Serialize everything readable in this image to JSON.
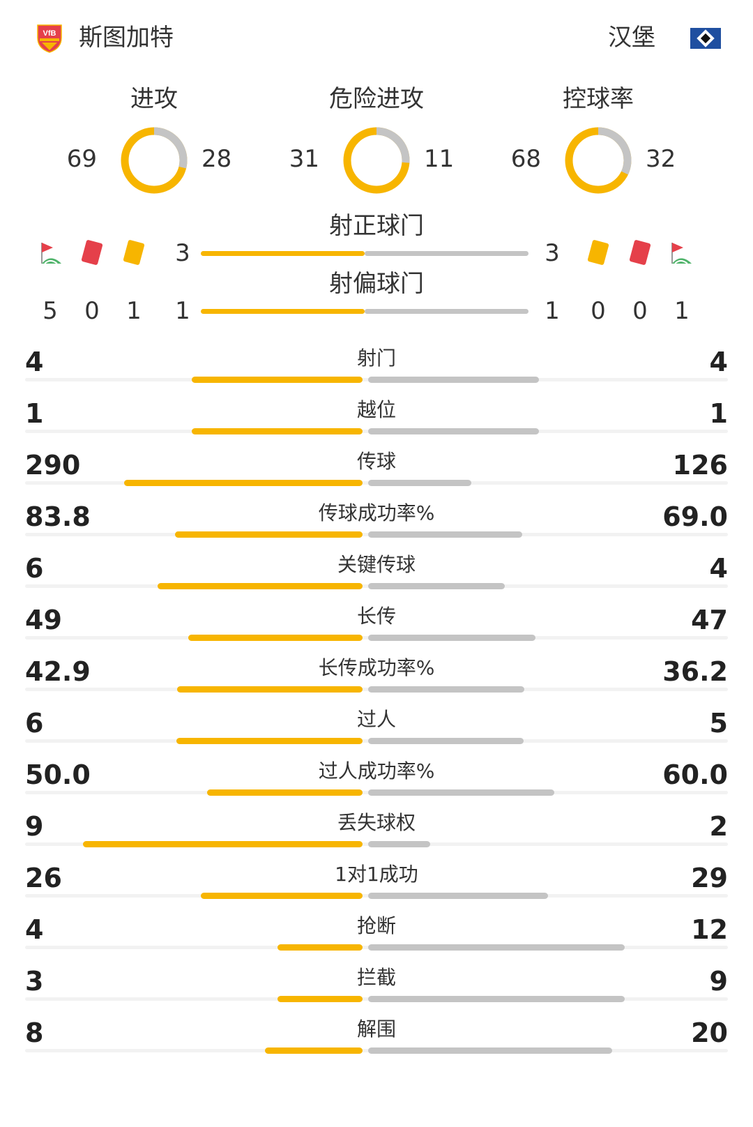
{
  "header": {
    "home_team": "斯图加特",
    "away_team": "汉堡",
    "home_logo_text": "VfB"
  },
  "donuts": [
    {
      "title": "进攻",
      "home": "69",
      "away": "28",
      "home_value": 69,
      "away_value": 28
    },
    {
      "title": "危险进攻",
      "home": "31",
      "away": "11",
      "home_value": 31,
      "away_value": 11
    },
    {
      "title": "控球率",
      "home": "68",
      "away": "32",
      "home_value": 68,
      "away_value": 32
    }
  ],
  "shots": {
    "on_target": {
      "title": "射正球门",
      "home": "3",
      "away": "3",
      "home_value": 3,
      "away_value": 3
    },
    "off_target": {
      "title": "射偏球门",
      "home": "1",
      "away": "1",
      "home_value": 1,
      "away_value": 1
    }
  },
  "discipline": {
    "home": {
      "corners": "5",
      "red_cards": "0",
      "yellow_cards": "1"
    },
    "away": {
      "yellow_cards": "0",
      "red_cards": "0",
      "corners": "1"
    },
    "icons": [
      "corner-flag-icon",
      "red-card-icon",
      "yellow-card-icon"
    ]
  },
  "stats": [
    {
      "label": "射门",
      "home": "4",
      "away": "4",
      "home_value": 4,
      "away_value": 4
    },
    {
      "label": "越位",
      "home": "1",
      "away": "1",
      "home_value": 1,
      "away_value": 1
    },
    {
      "label": "传球",
      "home": "290",
      "away": "126",
      "home_value": 290,
      "away_value": 126
    },
    {
      "label": "传球成功率%",
      "home": "83.8",
      "away": "69.0",
      "home_value": 83.8,
      "away_value": 69.0
    },
    {
      "label": "关键传球",
      "home": "6",
      "away": "4",
      "home_value": 6,
      "away_value": 4
    },
    {
      "label": "长传",
      "home": "49",
      "away": "47",
      "home_value": 49,
      "away_value": 47
    },
    {
      "label": "长传成功率%",
      "home": "42.9",
      "away": "36.2",
      "home_value": 42.9,
      "away_value": 36.2
    },
    {
      "label": "过人",
      "home": "6",
      "away": "5",
      "home_value": 6,
      "away_value": 5
    },
    {
      "label": "过人成功率%",
      "home": "50.0",
      "away": "60.0",
      "home_value": 50.0,
      "away_value": 60.0
    },
    {
      "label": "丢失球权",
      "home": "9",
      "away": "2",
      "home_value": 9,
      "away_value": 2
    },
    {
      "label": "1对1成功",
      "home": "26",
      "away": "29",
      "home_value": 26,
      "away_value": 29
    },
    {
      "label": "抢断",
      "home": "4",
      "away": "12",
      "home_value": 4,
      "away_value": 12
    },
    {
      "label": "拦截",
      "home": "3",
      "away": "9",
      "home_value": 3,
      "away_value": 9
    },
    {
      "label": "解围",
      "home": "8",
      "away": "20",
      "home_value": 8,
      "away_value": 20
    }
  ],
  "colors": {
    "home": "#f7b500",
    "away": "#c4c4c4",
    "red_card": "#e5404a",
    "yellow_card": "#f7b500",
    "away_logo_blue": "#1f4fa0"
  }
}
